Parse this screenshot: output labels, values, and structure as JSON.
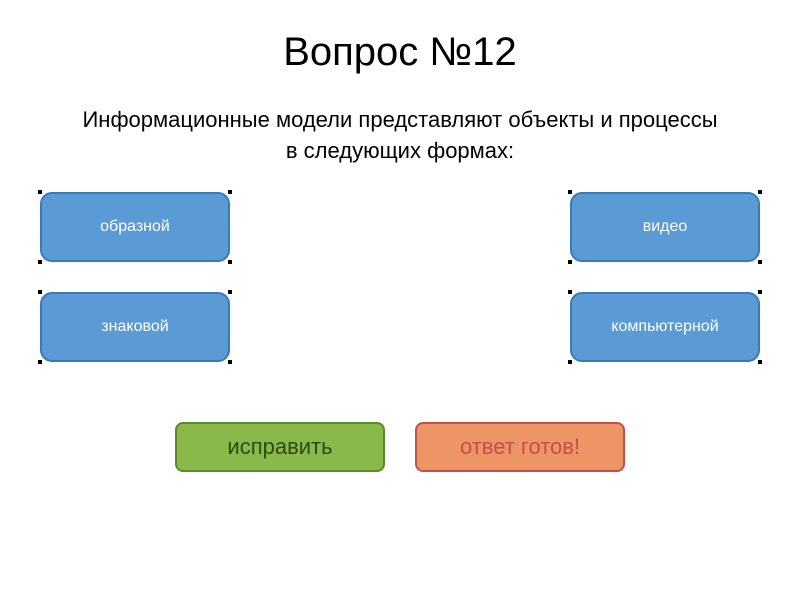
{
  "title": "Вопрос №12",
  "question": "Информационные модели представляют объекты и процессы в следующих формах:",
  "options": [
    {
      "label": "образной"
    },
    {
      "label": "видео"
    },
    {
      "label": "знаковой"
    },
    {
      "label": "компьютерной"
    }
  ],
  "actions": {
    "fix": "исправить",
    "ready": "ответ готов!"
  },
  "styles": {
    "option_bg": "#5b9bd5",
    "option_border": "#3a7ab5",
    "option_text": "#ffffff",
    "fix_bg": "#8bb84a",
    "fix_border": "#5a8a2a",
    "fix_text": "#2a4a0a",
    "ready_bg": "#ed9564",
    "ready_border": "#c0504d",
    "ready_text": "#c0504d",
    "title_fontsize": 40,
    "question_fontsize": 22,
    "option_fontsize": 16,
    "action_fontsize": 22,
    "background": "#ffffff"
  }
}
